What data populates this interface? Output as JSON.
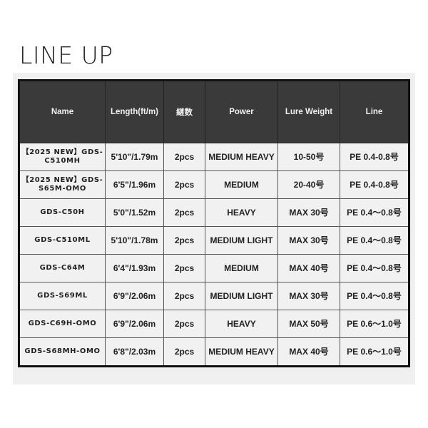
{
  "title": "LINE UP",
  "headers": [
    "Name",
    "Length(ft/m)",
    "継数",
    "Power",
    "Lure Weight",
    "Line"
  ],
  "rows": [
    [
      "【2025 NEW】GDS-C510MH",
      "5'10\"/1.79m",
      "2pcs",
      "MEDIUM HEAVY",
      "10-50号",
      "PE 0.4-0.8号"
    ],
    [
      "【2025 NEW】GDS-S65M-OMO",
      "6'5\"/1.96m",
      "2pcs",
      "MEDIUM",
      "20-40号",
      "PE 0.4-0.8号"
    ],
    [
      "GDS-C50H",
      "5'0\"/1.52m",
      "2pcs",
      "HEAVY",
      "MAX 30号",
      "PE 0.4～0.8号"
    ],
    [
      "GDS-C510ML",
      "5'10\"/1.78m",
      "2pcs",
      "MEDIUM LIGHT",
      "MAX 30号",
      "PE 0.4～0.8号"
    ],
    [
      "GDS-C64M",
      "6'4\"/1.93m",
      "2pcs",
      "MEDIUM",
      "MAX 40号",
      "PE 0.4～0.8号"
    ],
    [
      "GDS-S69ML",
      "6'9\"/2.06m",
      "2pcs",
      "MEDIUM LIGHT",
      "MAX 30号",
      "PE 0.4～0.8号"
    ],
    [
      "GDS-C69H-OMO",
      "6'9\"/2.06m",
      "2pcs",
      "HEAVY",
      "MAX 50号",
      "PE 0.6～1.0号"
    ],
    [
      "GDS-S68MH-OMO",
      "6'8\"/2.03m",
      "2pcs",
      "MEDIUM HEAVY",
      "MAX 40号",
      "PE 0.6～1.0号"
    ]
  ]
}
